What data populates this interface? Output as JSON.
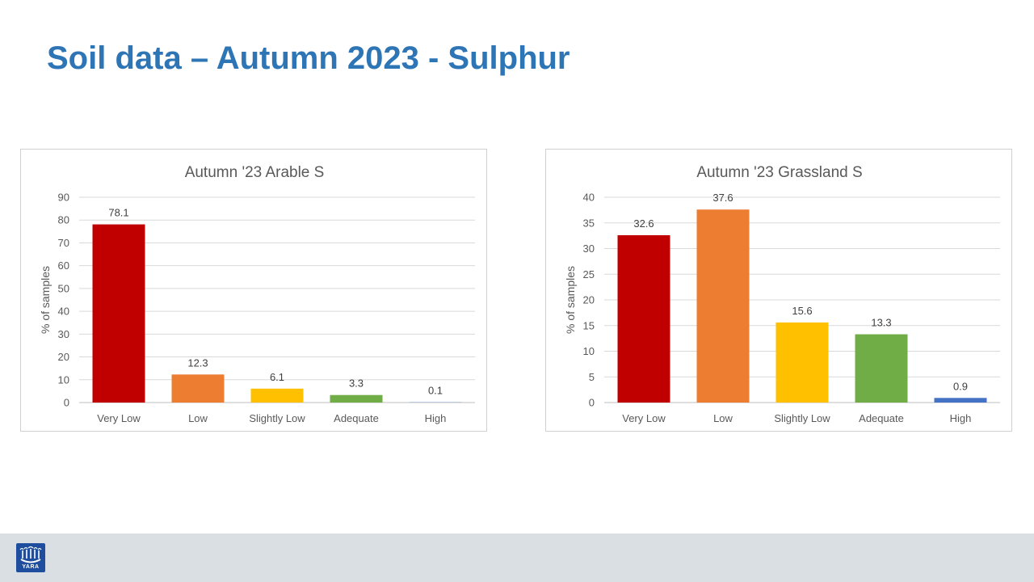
{
  "slide": {
    "title": "Soil data – Autumn 2023 - Sulphur"
  },
  "logo": {
    "text": "YARA",
    "color": "#1F4E9E"
  },
  "chart_data": [
    {
      "type": "bar",
      "title": "Autumn '23 Arable S",
      "ylabel": "% of samples",
      "xlabel": "",
      "categories": [
        "Very Low",
        "Low",
        "Slightly Low",
        "Adequate",
        "High"
      ],
      "values": [
        78.1,
        12.3,
        6.1,
        3.3,
        0.1
      ],
      "value_labels": [
        "78.1",
        "12.3",
        "6.1",
        "3.3",
        "0.1"
      ],
      "colors": [
        "#C00000",
        "#ED7D31",
        "#FFC000",
        "#70AD47",
        "#4472C4"
      ],
      "ylim": [
        0,
        90
      ],
      "yticks": [
        0,
        10,
        20,
        30,
        40,
        50,
        60,
        70,
        80,
        90
      ],
      "grid": true,
      "legend": "none"
    },
    {
      "type": "bar",
      "title": "Autumn '23 Grassland S",
      "ylabel": "% of samples",
      "xlabel": "",
      "categories": [
        "Very Low",
        "Low",
        "Slightly Low",
        "Adequate",
        "High"
      ],
      "values": [
        32.6,
        37.6,
        15.6,
        13.3,
        0.9
      ],
      "value_labels": [
        "32.6",
        "37.6",
        "15.6",
        "13.3",
        "0.9"
      ],
      "colors": [
        "#C00000",
        "#ED7D31",
        "#FFC000",
        "#70AD47",
        "#4472C4"
      ],
      "ylim": [
        0,
        40
      ],
      "yticks": [
        0,
        5,
        10,
        15,
        20,
        25,
        30,
        35,
        40
      ],
      "grid": true,
      "legend": "none"
    }
  ]
}
